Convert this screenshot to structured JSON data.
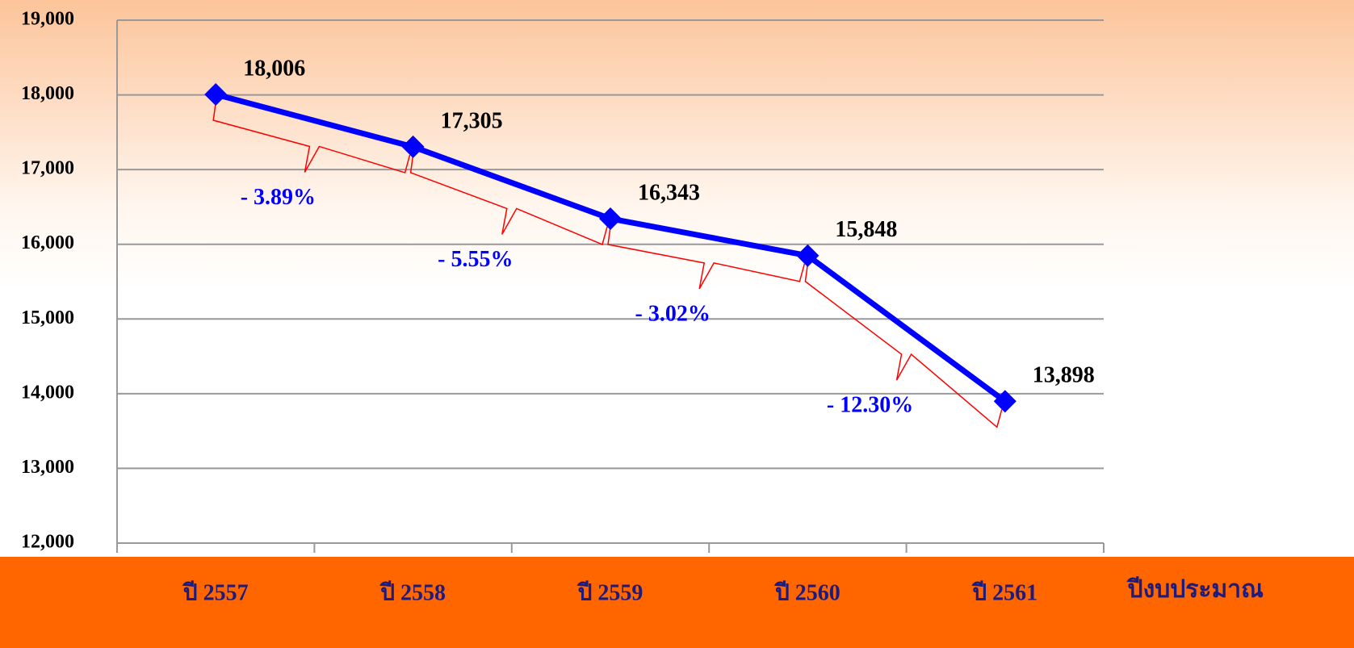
{
  "chart_data": {
    "type": "line",
    "categories": [
      "ปี 2557",
      "ปี 2558",
      "ปี 2559",
      "ปี 2560",
      "ปี 2561"
    ],
    "x_label": "ปีงบประมาณ",
    "series": [
      {
        "color": "#0000ff",
        "values": [
          18006,
          17305,
          16343,
          15848,
          13898
        ],
        "value_labels": [
          "18,006",
          "17,305",
          "16,343",
          "15,848",
          "13,898"
        ]
      }
    ],
    "annotations": [
      "- 3.89%",
      "- 5.55%",
      "- 3.02%",
      "- 12.30%"
    ],
    "ylim": [
      12000,
      19000
    ],
    "yticks": [
      {
        "value": 12000,
        "label": "12,000"
      },
      {
        "value": 13000,
        "label": "13,000"
      },
      {
        "value": 14000,
        "label": "14,000"
      },
      {
        "value": 15000,
        "label": "15,000"
      },
      {
        "value": 16000,
        "label": "16,000"
      },
      {
        "value": 17000,
        "label": "17,000"
      },
      {
        "value": 18000,
        "label": "18,000"
      },
      {
        "value": 19000,
        "label": "19,000"
      }
    ],
    "grid": true
  }
}
